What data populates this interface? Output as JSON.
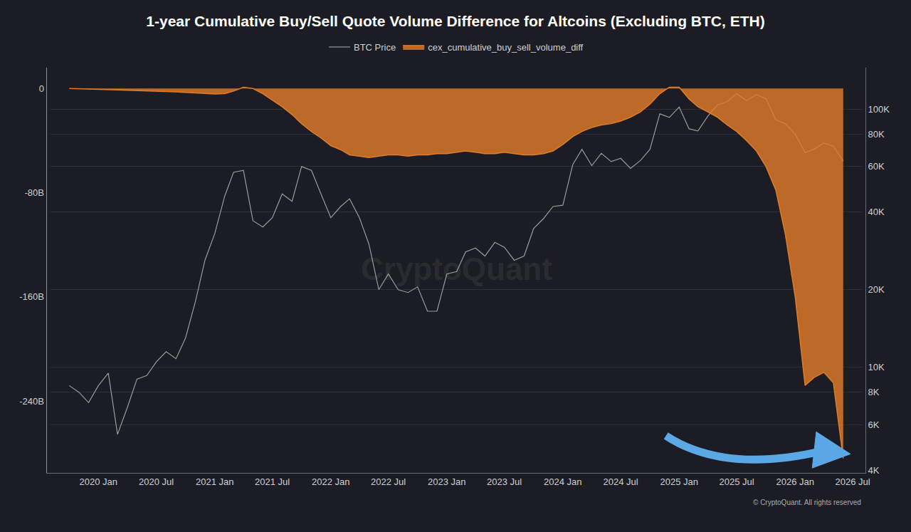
{
  "chart_data": {
    "type": "line",
    "title": "1-year Cumulative Buy/Sell Quote Volume Difference for Altcoins (Excluding BTC, ETH)",
    "annotations": [
      "CryptoQuant",
      "© CryptoQuant. All rights reserved"
    ],
    "legend": "top",
    "grid": true,
    "log": "y",
    "x": [
      "2019-10",
      "2019-11",
      "2019-12",
      "2020-01",
      "2020-02",
      "2020-03",
      "2020-04",
      "2020-05",
      "2020-06",
      "2020-07",
      "2020-08",
      "2020-09",
      "2020-10",
      "2020-11",
      "2020-12",
      "2021-01",
      "2021-02",
      "2021-03",
      "2021-04",
      "2021-05",
      "2021-06",
      "2021-07",
      "2021-08",
      "2021-09",
      "2021-10",
      "2021-11",
      "2021-12",
      "2022-01",
      "2022-02",
      "2022-03",
      "2022-04",
      "2022-05",
      "2022-06",
      "2022-07",
      "2022-08",
      "2022-09",
      "2022-10",
      "2022-11",
      "2022-12",
      "2023-01",
      "2023-02",
      "2023-03",
      "2023-04",
      "2023-05",
      "2023-06",
      "2023-07",
      "2023-08",
      "2023-09",
      "2023-10",
      "2023-11",
      "2023-12",
      "2024-01",
      "2024-02",
      "2024-03",
      "2024-04",
      "2024-05",
      "2024-06",
      "2024-07",
      "2024-08",
      "2024-09",
      "2024-10",
      "2024-11",
      "2024-12",
      "2025-01",
      "2025-02",
      "2025-03",
      "2025-04",
      "2025-05",
      "2025-06",
      "2025-07",
      "2025-08",
      "2025-09",
      "2025-10",
      "2025-11",
      "2025-12",
      "2026-01",
      "2026-02",
      "2026-03",
      "2026-04",
      "2026-05",
      "2026-06"
    ],
    "xlim": [
      "2019-08",
      "2026-08"
    ],
    "xticks": [
      {
        "value": "2020-01",
        "label": "2020 Jan"
      },
      {
        "value": "2020-07",
        "label": "2020 Jul"
      },
      {
        "value": "2021-01",
        "label": "2021 Jan"
      },
      {
        "value": "2021-07",
        "label": "2021 Jul"
      },
      {
        "value": "2022-01",
        "label": "2022 Jan"
      },
      {
        "value": "2022-07",
        "label": "2022 Jul"
      },
      {
        "value": "2023-01",
        "label": "2023 Jan"
      },
      {
        "value": "2023-07",
        "label": "2023 Jul"
      },
      {
        "value": "2024-01",
        "label": "2024 Jan"
      },
      {
        "value": "2024-07",
        "label": "2024 Jul"
      },
      {
        "value": "2025-01",
        "label": "2025 Jan"
      },
      {
        "value": "2025-07",
        "label": "2025 Jul"
      },
      {
        "value": "2026-01",
        "label": "2026 Jan"
      },
      {
        "value": "2026-07",
        "label": "2026 Jul"
      }
    ],
    "ylim": [
      4000,
      145000
    ],
    "yticks": [
      {
        "value": 4000,
        "label": "4K"
      },
      {
        "value": 6000,
        "label": "6K"
      },
      {
        "value": 8000,
        "label": "8K"
      },
      {
        "value": 10000,
        "label": "10K"
      },
      {
        "value": 20000,
        "label": "20K"
      },
      {
        "value": 40000,
        "label": "40K"
      },
      {
        "value": 60000,
        "label": "60K"
      },
      {
        "value": 80000,
        "label": "80K"
      },
      {
        "value": 100000,
        "label": "100K"
      }
    ],
    "y2lim": [
      -293,
      16
    ],
    "y2ticks": [
      0,
      {
        "value": -80,
        "label": "-80B"
      },
      {
        "value": -160,
        "label": "-160B"
      },
      {
        "value": -240,
        "label": "-240B"
      }
    ],
    "series": [
      {
        "name": "BTC Price",
        "type": "line",
        "color": "#9a9a9e",
        "values": [
          8500,
          8000,
          7300,
          8500,
          9500,
          5500,
          7000,
          9000,
          9300,
          10500,
          11500,
          10800,
          13000,
          18000,
          26000,
          33000,
          46000,
          57000,
          58000,
          37000,
          35000,
          38000,
          47000,
          44000,
          60000,
          58000,
          47000,
          38000,
          42000,
          45000,
          38000,
          30000,
          20000,
          23000,
          20000,
          19500,
          20500,
          16500,
          16500,
          23000,
          23500,
          28000,
          29000,
          27000,
          30500,
          29200,
          26000,
          27000,
          34500,
          37700,
          42000,
          42500,
          61000,
          70000,
          60500,
          67500,
          62700,
          64600,
          59000,
          63300,
          70000,
          96000,
          93000,
          102000,
          84000,
          82500,
          94000,
          104000,
          107000,
          115000,
          108000,
          114000,
          110000,
          91000,
          88000,
          80000,
          68000,
          70000,
          74000,
          72000,
          63000
        ]
      },
      {
        "name": "cex_cumulative_buy_sell_volume_diff",
        "type": "area",
        "axis": "y2",
        "color": "#e07b2a",
        "values": [
          0,
          -0.3,
          -0.5,
          -0.7,
          -0.9,
          -1.1,
          -1.3,
          -1.5,
          -1.8,
          -2,
          -2.3,
          -2.6,
          -3,
          -3.4,
          -3.8,
          -4.2,
          -4,
          -2,
          1,
          0,
          -4,
          -9,
          -14,
          -20,
          -27,
          -33,
          -38,
          -44,
          -47,
          -51,
          -52,
          -53,
          -52,
          -51,
          -51,
          -52,
          -51,
          -51,
          -50,
          -50,
          -49,
          -48,
          -49,
          -50,
          -50,
          -49,
          -50,
          -51,
          -51,
          -50,
          -48,
          -43,
          -37,
          -33,
          -30,
          -28,
          -27,
          -25,
          -22,
          -18,
          -12,
          -4,
          1,
          1,
          -8,
          -14,
          -18,
          -22,
          -28,
          -33,
          -40,
          -48,
          -60,
          -78,
          -112,
          -160,
          -228,
          -222,
          -218,
          -226,
          -284
        ]
      }
    ]
  }
}
